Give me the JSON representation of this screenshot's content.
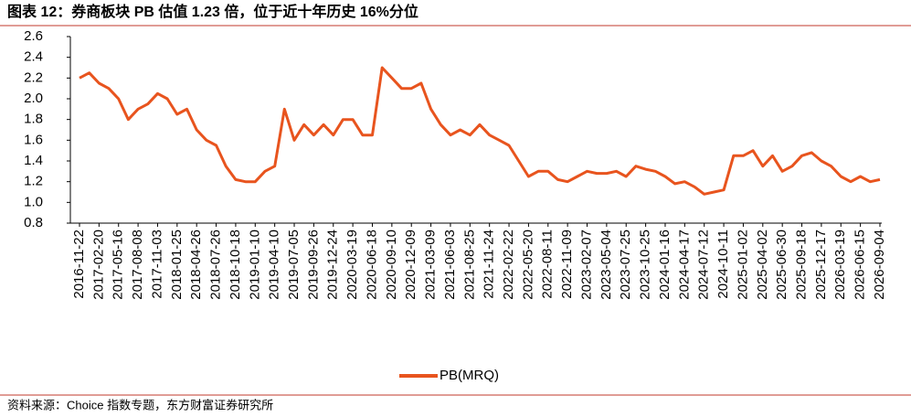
{
  "chart_data": {
    "type": "line",
    "title": "图表 12：券商板块 PB 估值 1.23 倍，位于近十年历史 16%分位",
    "source": "资料来源：Choice 指数专题，东方财富证券研究所",
    "categories": [
      "2016-11-22",
      null,
      "2017-02-20",
      null,
      "2017-05-16",
      null,
      "2017-08-08",
      null,
      "2017-11-03",
      null,
      "2018-01-25",
      null,
      "2018-04-26",
      null,
      "2018-07-26",
      null,
      "2018-10-18",
      null,
      "2019-01-10",
      null,
      "2019-04-10",
      null,
      "2019-07-05",
      null,
      "2019-09-26",
      null,
      "2019-12-24",
      null,
      "2020-03-19",
      null,
      "2020-06-18",
      null,
      "2020-09-10",
      null,
      "2020-12-09",
      null,
      "2021-03-09",
      null,
      "2021-06-03",
      null,
      "2021-08-25",
      null,
      "2021-11-24",
      null,
      "2022-02-22",
      null,
      "2022-05-20",
      null,
      "2022-08-11",
      null,
      "2022-11-09",
      null,
      "2023-02-07",
      null,
      "2023-05-04",
      null,
      "2023-07-25",
      null,
      "2023-10-25",
      null,
      "2024-01-16",
      null,
      "2024-04-17",
      null,
      "2024-07-12",
      null,
      "2024-10-11",
      null,
      "2025-01-02",
      null,
      "2025-04-02",
      null,
      "2025-06-30",
      null,
      "2025-09-18",
      null,
      "2025-12-17",
      null,
      "2026-03-19",
      null,
      "2026-06-15",
      null,
      "2026-09-04"
    ],
    "series": [
      {
        "name": "PB(MRQ)",
        "color": "#e8541e",
        "values": [
          2.2,
          2.25,
          2.15,
          2.1,
          2.0,
          1.8,
          1.9,
          1.95,
          2.05,
          2.0,
          1.85,
          1.9,
          1.7,
          1.6,
          1.55,
          1.35,
          1.22,
          1.2,
          1.2,
          1.3,
          1.35,
          1.9,
          1.6,
          1.75,
          1.65,
          1.75,
          1.65,
          1.8,
          1.8,
          1.65,
          1.65,
          2.3,
          2.2,
          2.1,
          2.1,
          2.15,
          1.9,
          1.75,
          1.65,
          1.7,
          1.65,
          1.75,
          1.65,
          1.6,
          1.55,
          1.4,
          1.25,
          1.3,
          1.3,
          1.22,
          1.2,
          1.25,
          1.3,
          1.28,
          1.28,
          1.3,
          1.25,
          1.35,
          1.32,
          1.3,
          1.25,
          1.18,
          1.2,
          1.15,
          1.08,
          1.1,
          1.12,
          1.45,
          1.45,
          1.5,
          1.35,
          1.45,
          1.3,
          1.35,
          1.45,
          1.48,
          1.4,
          1.35,
          1.25,
          1.2,
          1.25,
          1.2,
          1.22
        ]
      }
    ],
    "ylim": [
      0.8,
      2.6
    ],
    "yticks": [
      0.8,
      {
        "value": 1,
        "label": "1.0"
      },
      1.2,
      1.4,
      1.6,
      1.8,
      {
        "value": 2,
        "label": "2.0"
      },
      2.2,
      2.4,
      2.6
    ],
    "grid": false
  }
}
